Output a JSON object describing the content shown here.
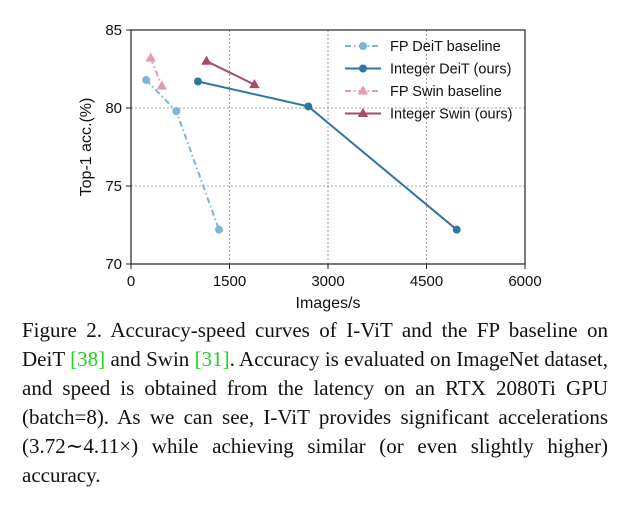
{
  "chart_data": {
    "type": "line",
    "xlabel": "Images/s",
    "ylabel": "Top-1 acc.(%)",
    "xlim": [
      0,
      6000
    ],
    "ylim": [
      70,
      85
    ],
    "xticks": [
      0,
      1500,
      3000,
      4500,
      6000
    ],
    "xtick_labels": [
      "0",
      "1500",
      "3000",
      "4500",
      "6000"
    ],
    "yticks": [
      70,
      75,
      80,
      85
    ],
    "ytick_labels": [
      "70",
      "75",
      "80",
      "85"
    ],
    "grid": true,
    "legend_position": "top-right",
    "series": [
      {
        "name": "FP DeiT baseline",
        "color": "#7fb4d6",
        "marker": "circle",
        "dash": "dashdot",
        "x": [
          230,
          690,
          1340
        ],
        "y": [
          81.8,
          79.8,
          72.2
        ]
      },
      {
        "name": "Integer DeiT (ours)",
        "color": "#2e77a0",
        "marker": "circle",
        "dash": "solid",
        "x": [
          1020,
          2700,
          4960
        ],
        "y": [
          81.7,
          80.1,
          72.2
        ]
      },
      {
        "name": "FP Swin baseline",
        "color": "#e59ab5",
        "marker": "triangle",
        "dash": "dashdot",
        "x": [
          300,
          470
        ],
        "y": [
          83.2,
          81.4
        ]
      },
      {
        "name": "Integer Swin (ours)",
        "color": "#a54c6e",
        "marker": "triangle",
        "dash": "solid",
        "x": [
          1150,
          1880
        ],
        "y": [
          83.0,
          81.5
        ]
      }
    ]
  },
  "caption": {
    "label": "Figure 2.",
    "text_1": " Accuracy-speed curves of I-ViT and the FP baseline on DeiT ",
    "cite_1": "[38]",
    "text_2": " and Swin ",
    "cite_2": "[31]",
    "text_3": ". Accuracy is evaluated on ImageNet dataset, and speed is obtained from the latency on an RTX 2080Ti GPU (batch=8). As we can see, I-ViT provides significant accelerations (3.72∼4.11×) while achieving similar (or even slightly higher) accuracy."
  }
}
